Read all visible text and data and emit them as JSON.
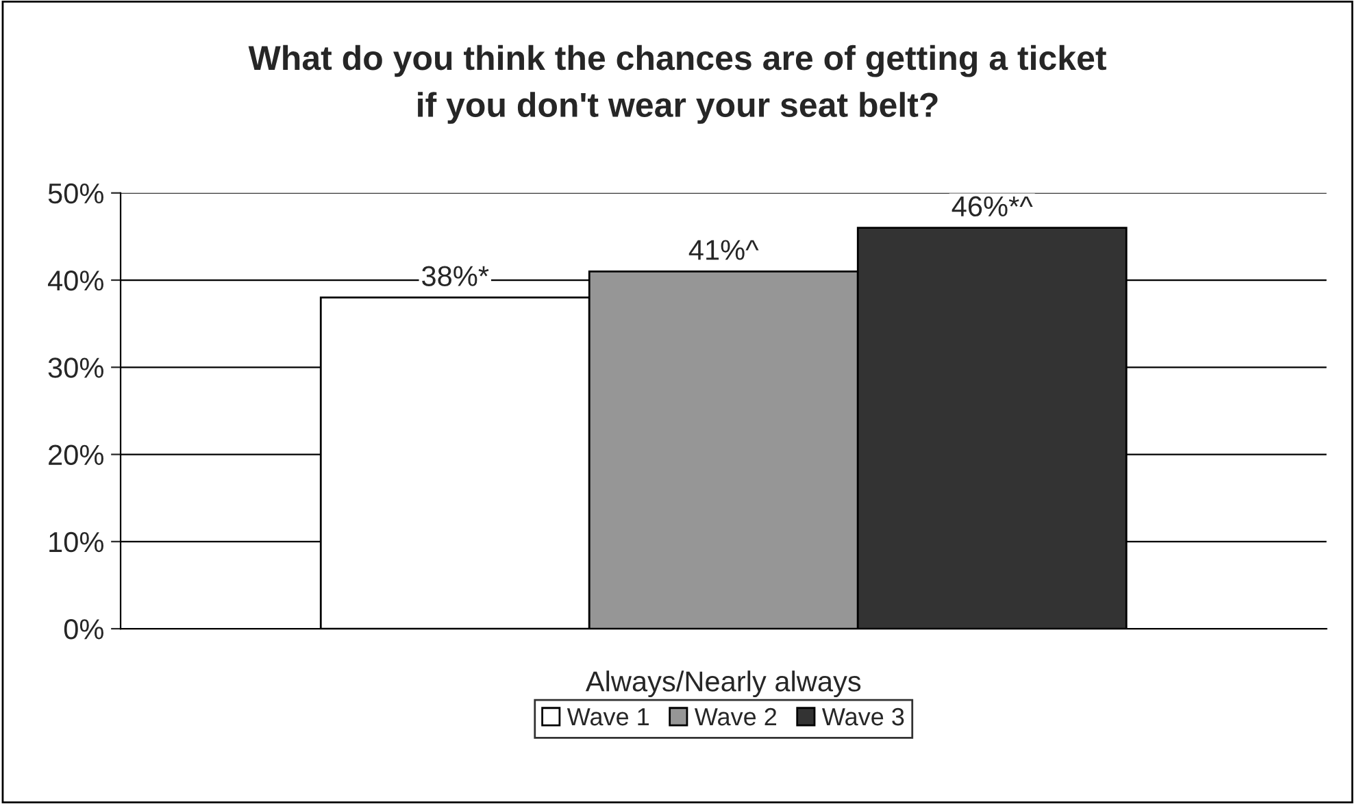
{
  "chart_data": {
    "type": "bar",
    "title": "What do you think the chances are of getting a ticket\nif you don't wear your seat belt?",
    "categories": [
      "Always/Nearly always"
    ],
    "series": [
      {
        "name": "Wave 1",
        "color": "#ffffff",
        "values": [
          38
        ],
        "value_labels": [
          "38%*"
        ]
      },
      {
        "name": "Wave 2",
        "color": "#969696",
        "values": [
          41
        ],
        "value_labels": [
          "41%^"
        ]
      },
      {
        "name": "Wave 3",
        "color": "#333333",
        "values": [
          46
        ],
        "value_labels": [
          "46%*^"
        ]
      }
    ],
    "ylim": [
      0,
      50
    ],
    "yticks": [
      {
        "value": 0,
        "label": "0%"
      },
      {
        "value": 10,
        "label": "10%"
      },
      {
        "value": 20,
        "label": "20%"
      },
      {
        "value": 30,
        "label": "30%"
      },
      {
        "value": 40,
        "label": "40%"
      },
      {
        "value": 50,
        "label": "50%"
      }
    ],
    "grid": "y",
    "legend": "bottom"
  }
}
